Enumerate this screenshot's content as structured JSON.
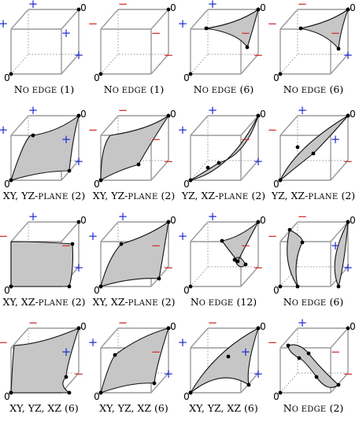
{
  "colors": {
    "plus": "#2030d0",
    "minus": "#d03030",
    "surface": "#c6c6c6",
    "cube": "#9a9a9a"
  },
  "vertex_labels": {
    "origin": "0",
    "far": "0"
  },
  "signs": {
    "plus": "+",
    "minus": "−"
  },
  "cells": [
    {
      "caption": "No edge (1)",
      "caption_parts": [
        [
          "N",
          "o edge"
        ],
        [
          " (1)"
        ]
      ],
      "signs": "+ + + +",
      "shape": "none"
    },
    {
      "caption": "No edge (1)",
      "caption_parts": [
        [
          "N",
          "o edge"
        ],
        [
          " (1)"
        ]
      ],
      "signs": "- - - -",
      "shape": "none"
    },
    {
      "caption": "No edge (6)",
      "caption_parts": [
        [
          "N",
          "o edge"
        ],
        [
          " (6)"
        ]
      ],
      "signs": "+ + - -",
      "shape": "corner-small"
    },
    {
      "caption": "No edge (6)",
      "caption_parts": [
        [
          "N",
          "o edge"
        ],
        [
          " (6)"
        ]
      ],
      "signs": "- - - +",
      "shape": "corner-small-b"
    },
    {
      "caption": "XY, YZ-plane (2)",
      "caption_parts": [
        [
          "XY, YZ-",
          ""
        ],
        [
          "plane",
          "sc"
        ],
        [
          " (2)"
        ]
      ],
      "signs": "+ + + +",
      "shape": "plane-a"
    },
    {
      "caption": "XY, YZ-plane (2)",
      "caption_parts": [
        [
          "XY, YZ-",
          ""
        ],
        [
          "plane",
          "sc"
        ],
        [
          " (2)"
        ]
      ],
      "signs": "- - - -",
      "shape": "plane-b"
    },
    {
      "caption": "YZ, XZ-plane (2)",
      "caption_parts": [
        [
          "YZ, XZ-",
          ""
        ],
        [
          "plane",
          "sc"
        ],
        [
          " (2)"
        ]
      ],
      "signs": "+ + - +",
      "shape": "diag-a"
    },
    {
      "caption": "YZ, XZ-plane (2)",
      "caption_parts": [
        [
          "YZ, XZ-",
          ""
        ],
        [
          "plane",
          "sc"
        ],
        [
          " (2)"
        ]
      ],
      "signs": "- + + -",
      "shape": "diag-b"
    },
    {
      "caption": "XY, XZ-plane (2)",
      "caption_parts": [
        [
          "XY, XZ-",
          ""
        ],
        [
          "plane",
          "sc"
        ],
        [
          " (2)"
        ]
      ],
      "signs": "- + - +",
      "shape": "square-a"
    },
    {
      "caption": "XY, XZ-plane (2)",
      "caption_parts": [
        [
          "XY, XZ-",
          ""
        ],
        [
          "plane",
          "sc"
        ],
        [
          " (2)"
        ]
      ],
      "signs": "+ + - -",
      "shape": "square-b"
    },
    {
      "caption": "No edge (12)",
      "caption_parts": [
        [
          "N",
          "o edge"
        ],
        [
          " (12)"
        ]
      ],
      "signs": "+ + - -",
      "shape": "twin-a"
    },
    {
      "caption": "No edge (6)",
      "caption_parts": [
        [
          "N",
          "o edge"
        ],
        [
          " (6)"
        ]
      ],
      "signs": "- - + +",
      "shape": "twin-b"
    },
    {
      "caption": "XY, YZ, XZ (6)",
      "caption_parts": [
        [
          "XY, YZ, XZ (6)",
          ""
        ]
      ],
      "signs": "- - + -",
      "shape": "sq-c"
    },
    {
      "caption": "XY, YZ, XZ (6)",
      "caption_parts": [
        [
          "XY, YZ, XZ (6)",
          ""
        ]
      ],
      "signs": "+ - - +",
      "shape": "sq-d"
    },
    {
      "caption": "XY, YZ, XZ (6)",
      "caption_parts": [
        [
          "XY, YZ, XZ (6)",
          ""
        ]
      ],
      "signs": "+ - + +",
      "shape": "sq-e"
    },
    {
      "caption": "No edge (2)",
      "caption_parts": [
        [
          "N",
          "o edge"
        ],
        [
          " (2)"
        ]
      ],
      "signs": "- + - -",
      "shape": "arc"
    }
  ]
}
